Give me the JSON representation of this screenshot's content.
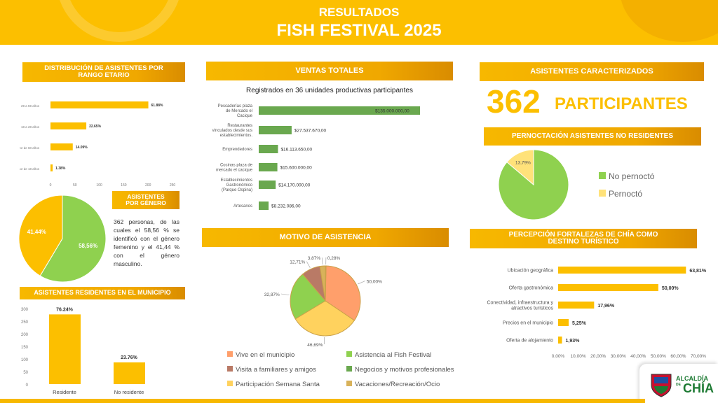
{
  "header": {
    "line1": "RESULTADOS",
    "line2": "FISH FESTIVAL 2025"
  },
  "sections": {
    "edad": "DISTRIBUCIÓN DE ASISTENTES POR RANGO ETARIO",
    "genero": "ASISTENTES POR GÉNERO",
    "residentes": "ASISTENTES RESIDENTES EN EL MUNICIPIO",
    "ventas": "VENTAS TOTALES",
    "motivo": "MOTIVO DE ASISTENCIA",
    "caracterizados": "ASISTENTES CARACTERIZADOS",
    "pernoctacion": "PERNOCTACIÓN ASISTENTES NO RESIDENTES",
    "percepcion": "PERCEPCIÓN FORTALEZAS DE CHÍA COMO DESTINO TURÍSTICO"
  },
  "genero_texto": "362 personas, de las cuales el 58,56 % se identificó con el género femenino y el 41,44 % con el género masculino.",
  "ventas_sub": "Registrados en 36 unidades productivas participantes",
  "participantes": {
    "number": "362",
    "label": "PARTICIPANTES"
  },
  "logo": {
    "line1": "ALCALDÍA",
    "line2": "CHÍA",
    "de": "DE"
  },
  "colors": {
    "yellow": "#fcbf00",
    "green": "#8fd14f",
    "dark_green": "#6aa84f",
    "light_yellow": "#ffe27a"
  },
  "chart_data": [
    {
      "type": "bar",
      "orientation": "horizontal",
      "categories": [
        "29 a 59 años",
        "18 a 28 años",
        "Mayor de 60 años",
        "Menor de 18 años"
      ],
      "values": [
        61.88,
        22.65,
        14.09,
        1.38
      ],
      "labels": [
        "61.88%",
        "22.65%",
        "14.09%",
        "1.38%"
      ],
      "xticks": [
        "0",
        "50",
        "100",
        "150",
        "200",
        "250"
      ],
      "xlim": [
        0,
        250
      ]
    },
    {
      "type": "pie",
      "slices": [
        {
          "value": 58.56,
          "label": "58,56%",
          "color": "#8fd14f"
        },
        {
          "value": 41.44,
          "label": "41,44%",
          "color": "#fcbf00"
        }
      ]
    },
    {
      "type": "bar",
      "categories": [
        "Residente",
        "No residente"
      ],
      "values": [
        76.24,
        23.76
      ],
      "labels": [
        "76.24%",
        "23.76%"
      ],
      "yticks": [
        "0",
        "50",
        "100",
        "150",
        "200",
        "250",
        "300"
      ],
      "ylim": [
        0,
        300
      ]
    },
    {
      "type": "bar",
      "orientation": "horizontal",
      "categories": [
        [
          "Pescaderías plaza",
          "de Mercado el",
          "Cacique"
        ],
        [
          "Restaurantes",
          "vinculados desde sus",
          "establecimientos."
        ],
        [
          "Emprendedores"
        ],
        [
          "Cocinas plaza de",
          "mercado el cacique"
        ],
        [
          "Establecimientos",
          "Gastronómico",
          "(Parque Ospina)"
        ],
        [
          "Artesanos"
        ]
      ],
      "values": [
        135000000,
        27537670,
        16113650,
        15600000,
        14170000,
        8232086
      ],
      "labels": [
        "$135.000.000,00",
        "$27.537.670,00",
        "$16.113.650,00",
        "$15.600.000,00",
        "$14.170.000,00",
        "$8.232.086,00"
      ]
    },
    {
      "type": "pie",
      "slices": [
        {
          "name": "Vive en el municipio",
          "value": 50.0,
          "label": "50,00%",
          "color": "#ff9f6b"
        },
        {
          "name": "Participación Semana Santa",
          "value": 46.69,
          "label": "46,69%",
          "color": "#ffd25e"
        },
        {
          "name": "Asistencia al Fish Festival",
          "value": 32.87,
          "label": "32,87%",
          "color": "#8fd14f"
        },
        {
          "name": "Visita a familiares y amigos",
          "value": 12.71,
          "label": "12,71%",
          "color": "#b97a66"
        },
        {
          "name": "Vacaciones/Recreación/Ocio",
          "value": 3.87,
          "label": "3,87%",
          "color": "#d8b25a"
        },
        {
          "name": "Negocios y motivos profesionales",
          "value": 0.28,
          "label": "0,28%",
          "color": "#6aa84f"
        }
      ],
      "legend": [
        [
          "Vive en el municipio",
          "Asistencia al Fish Festival"
        ],
        [
          "Visita a familiares y amigos",
          "Negocios y motivos profesionales"
        ],
        [
          "Participación Semana Santa",
          "Vacaciones/Recreación/Ocio"
        ]
      ]
    },
    {
      "type": "pie",
      "slices": [
        {
          "name": "No pernoctó",
          "value": 86.21,
          "label": "86,21%",
          "color": "#8fd14f"
        },
        {
          "name": "Pernoctó",
          "value": 13.79,
          "label": "13,79%",
          "color": "#ffe27a"
        }
      ],
      "legend": [
        "No pernoctó",
        "Pernoctó"
      ]
    },
    {
      "type": "bar",
      "orientation": "horizontal",
      "categories": [
        [
          "Ubicación geográfica"
        ],
        [
          "Oferta gastronómica"
        ],
        [
          "Conectividad, infraestructura y",
          "atractivos turísticos"
        ],
        [
          "Precios en el municipio"
        ],
        [
          "Oferta de alojamiento"
        ]
      ],
      "values": [
        63.81,
        50.0,
        17.96,
        5.25,
        1.93
      ],
      "labels": [
        "63,81%",
        "50,00%",
        "17,96%",
        "5,25%",
        "1,93%"
      ],
      "xticks": [
        "0,00%",
        "10,00%",
        "20,00%",
        "30,00%",
        "40,00%",
        "50,00%",
        "60,00%",
        "70,00%"
      ],
      "xlim": [
        0,
        70
      ]
    }
  ]
}
